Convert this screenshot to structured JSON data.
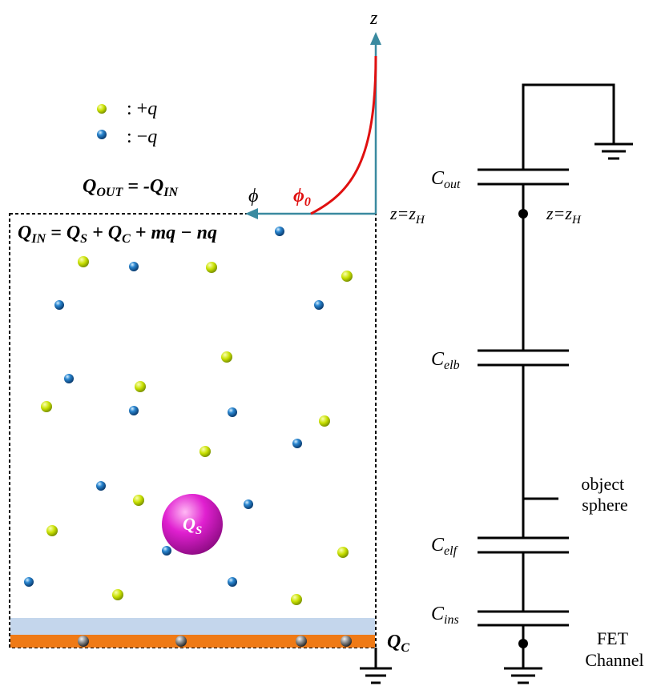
{
  "legend": {
    "positive": {
      "sep": ": ",
      "sign": "+",
      "sym": "q"
    },
    "negative": {
      "sep": ": ",
      "sign": "−",
      "sym": "q"
    }
  },
  "colors": {
    "positive_ion": "#c8e000",
    "negative_ion": "#1a6fb8",
    "sphere": "#e020d0",
    "potential_curve": "#e01010",
    "axis": "#3a8aa0",
    "electrode_light": "#c4d6ec",
    "electrode_orange": "#ef7a16",
    "electron": "#8a8a8a"
  },
  "labels": {
    "q_out": {
      "a": "Q",
      "a_sub": "OUT",
      "eq": " = -",
      "b": "Q",
      "b_sub": "IN"
    },
    "q_in": {
      "a": "Q",
      "a_sub": "IN",
      "eq1": " = ",
      "b": "Q",
      "b_sub": "S",
      "plus1": " + ",
      "c": "Q",
      "c_sub": "C",
      "rest": " + mq − nq"
    },
    "q_s": {
      "main": "Q",
      "sub": "S"
    },
    "q_c": {
      "main": "Q",
      "sub": "C"
    },
    "z_axis": "z",
    "phi_axis": "ϕ",
    "phi0": {
      "main": "ϕ",
      "sub": "0"
    },
    "zh_left": {
      "main": "z=z",
      "sub": "H"
    },
    "zh_right": {
      "main": "z=z",
      "sub": "H"
    }
  },
  "circuit": {
    "c_out": {
      "main": "C",
      "sub": "out"
    },
    "c_elb": {
      "main": "C",
      "sub": "elb"
    },
    "c_elf": {
      "main": "C",
      "sub": "elf"
    },
    "c_ins": {
      "main": "C",
      "sub": "ins"
    },
    "object_sphere": [
      "object",
      "sphere"
    ],
    "fet_channel": [
      "FET",
      "Channel"
    ]
  }
}
